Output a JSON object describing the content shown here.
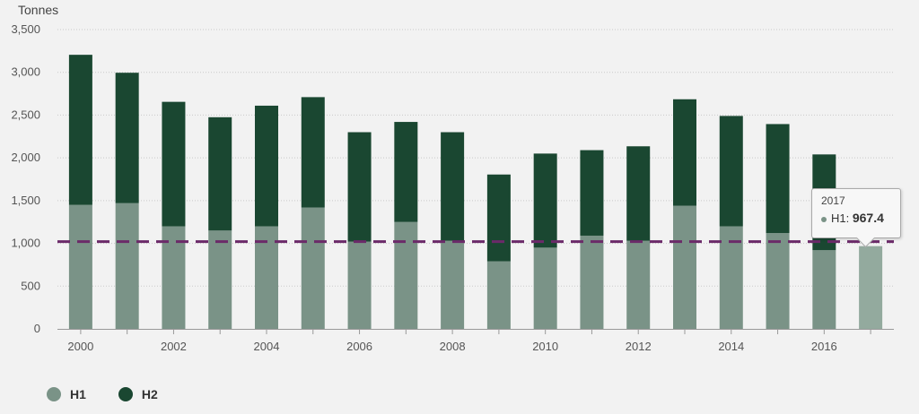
{
  "chart_data": {
    "type": "bar",
    "stacked": true,
    "ylabel": "Tonnes",
    "ylim": [
      0,
      3500
    ],
    "yticks": [
      0,
      500,
      1000,
      1500,
      2000,
      2500,
      3000,
      3500
    ],
    "ytick_labels": [
      "0",
      "500",
      "1,000",
      "1,500",
      "2,000",
      "2,500",
      "3,000",
      "3,500"
    ],
    "categories": [
      "2000",
      "2001",
      "2002",
      "2003",
      "2004",
      "2005",
      "2006",
      "2007",
      "2008",
      "2009",
      "2010",
      "2011",
      "2012",
      "2013",
      "2014",
      "2015",
      "2016",
      "2017"
    ],
    "xtick_labels": [
      "2000",
      "",
      "2002",
      "",
      "2004",
      "",
      "2006",
      "",
      "2008",
      "",
      "2010",
      "",
      "2012",
      "",
      "2014",
      "",
      "2016",
      ""
    ],
    "series": [
      {
        "name": "H1",
        "color": "#7a9387",
        "values": [
          1450,
          1470,
          1200,
          1150,
          1200,
          1420,
          1020,
          1250,
          1030,
          790,
          950,
          1090,
          1030,
          1440,
          1200,
          1120,
          920,
          967.4
        ]
      },
      {
        "name": "H2",
        "color": "#1a4731",
        "values": [
          1755,
          1525,
          1455,
          1325,
          1410,
          1290,
          1280,
          1170,
          1270,
          1015,
          1100,
          1000,
          1105,
          1245,
          1290,
          1275,
          1120,
          0
        ]
      }
    ],
    "reference_line": {
      "value": 1020,
      "color": "#6b2a69"
    },
    "grid": true,
    "legend": "bottom-left",
    "tooltip": {
      "title": "2017",
      "series": "H1",
      "label": "H1:",
      "value": "967.4",
      "highlight_color": "#93aa9e"
    }
  }
}
